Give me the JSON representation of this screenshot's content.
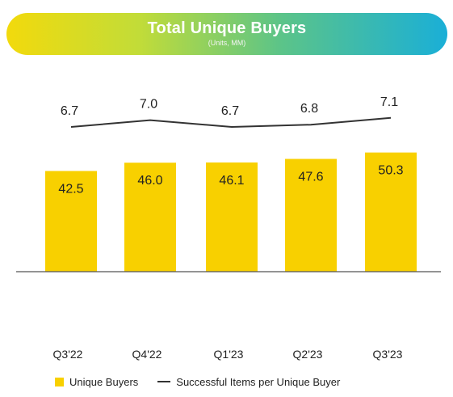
{
  "chart_data": {
    "type": "bar",
    "title": "Total Unique Buyers",
    "subtitle": "(Units, MM)",
    "categories": [
      "Q3'22",
      "Q4'22",
      "Q1'23",
      "Q2'23",
      "Q3'23"
    ],
    "series": [
      {
        "name": "Unique Buyers",
        "type": "bar",
        "values": [
          42.5,
          46.0,
          46.1,
          47.6,
          50.3
        ],
        "labels": [
          "42.5",
          "46.0",
          "46.1",
          "47.6",
          "50.3"
        ],
        "color": "#f8d000"
      },
      {
        "name": "Successful Items per Unique Buyer",
        "type": "line",
        "values": [
          6.7,
          7.0,
          6.7,
          6.8,
          7.1
        ],
        "labels": [
          "6.7",
          "7.0",
          "6.7",
          "6.8",
          "7.1"
        ],
        "color": "#333333"
      }
    ],
    "legend_position": "bottom",
    "grid": false
  }
}
